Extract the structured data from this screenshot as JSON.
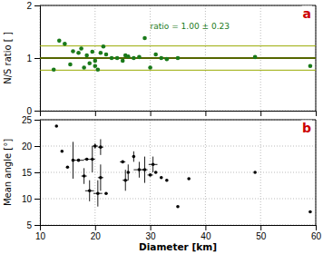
{
  "chart_data": [
    {
      "type": "scatter",
      "x": [
        12.5,
        13.5,
        14.5,
        15.5,
        16,
        17,
        17.5,
        18,
        18.5,
        19,
        19.5,
        20,
        20,
        20.5,
        21,
        21.5,
        22,
        23,
        24,
        25,
        25.5,
        26,
        27,
        28,
        29,
        30,
        31,
        32,
        33,
        35,
        49,
        59
      ],
      "values": [
        0.78,
        1.33,
        1.27,
        0.88,
        1.13,
        1.1,
        1.18,
        0.82,
        1.05,
        0.9,
        1.12,
        0.95,
        0.85,
        0.78,
        1.1,
        1.22,
        1.07,
        1.0,
        1.0,
        0.95,
        1.05,
        1.03,
        1.0,
        1.02,
        1.38,
        0.82,
        1.07,
        1.0,
        0.98,
        1.0,
        1.02,
        0.85
      ],
      "color": "#1a7a1a",
      "hlines": [
        {
          "value": 1.0,
          "color": "#556600"
        },
        {
          "value": 1.23,
          "color": "#99aa00"
        },
        {
          "value": 0.77,
          "color": "#99aa00"
        }
      ],
      "annotations": [
        {
          "text": "ratio = 1.00 ± 0.23",
          "color": "#1a7a1a"
        }
      ],
      "panel_label": {
        "text": "a",
        "color": "#cc0000"
      },
      "y_label": "N/S ratio [ ]",
      "xlim": [
        10,
        60
      ],
      "xticks": [
        10,
        20,
        30,
        40,
        50,
        60
      ],
      "ylim": [
        0,
        2
      ],
      "yticks": [
        0,
        1,
        2
      ],
      "grid": true,
      "tick_labels": "y"
    },
    {
      "type": "scatter",
      "x": [
        13,
        14,
        15,
        16,
        17,
        18,
        18.5,
        19,
        19.5,
        20,
        20.5,
        21,
        21,
        22,
        25,
        25.5,
        26,
        27,
        28,
        29,
        30,
        30.5,
        31,
        32,
        33,
        35,
        37,
        49,
        59
      ],
      "values": [
        23.8,
        19.0,
        16.0,
        17.3,
        17.3,
        14.3,
        17.5,
        11.5,
        17.5,
        20.0,
        11.0,
        19.8,
        14.0,
        11.0,
        17.0,
        13.5,
        15.0,
        18.0,
        15.5,
        15.5,
        14.5,
        16.5,
        15.0,
        14.0,
        13.5,
        8.5,
        13.8,
        15.0,
        7.5
      ],
      "xerr": [
        0,
        0,
        0,
        0,
        1.0,
        0.5,
        0.5,
        0.8,
        0.5,
        0.5,
        0.8,
        0.5,
        0.5,
        0,
        0.5,
        0.5,
        0,
        0,
        1.0,
        0.5,
        0.5,
        0.8,
        0,
        0,
        0,
        0,
        0,
        0,
        0
      ],
      "yerr": [
        0,
        0,
        0,
        3.5,
        0,
        1.5,
        0,
        2.0,
        2.5,
        0.5,
        2.5,
        1.5,
        2.5,
        0,
        0,
        2.0,
        1.5,
        1.0,
        1.5,
        2.5,
        0,
        1.5,
        0,
        0,
        0,
        0,
        0,
        0,
        0
      ],
      "color": "#000000",
      "panel_label": {
        "text": "b",
        "color": "#cc0000"
      },
      "y_label": "Mean angle [°]",
      "x_label": "Diameter [km]",
      "xlim": [
        10,
        60
      ],
      "xticks": [
        10,
        20,
        30,
        40,
        50,
        60
      ],
      "ylim": [
        5,
        25
      ],
      "yticks": [
        5,
        10,
        15,
        20,
        25
      ],
      "grid": true
    }
  ]
}
